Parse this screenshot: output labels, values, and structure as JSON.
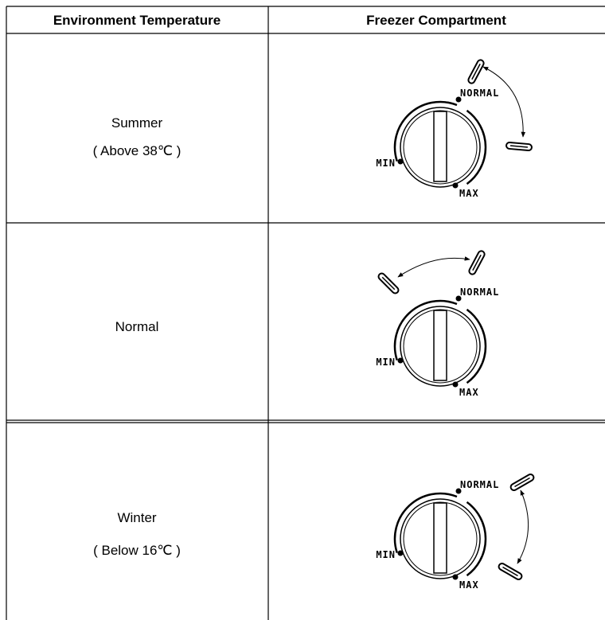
{
  "table": {
    "header": [
      "Environment Temperature",
      "Freezer Compartment"
    ],
    "rows": [
      {
        "label": "Summer",
        "note": "( Above 38℃ )"
      },
      {
        "label": "Normal"
      },
      {
        "label": "Winter",
        "note": "( Below 16℃ )"
      }
    ]
  },
  "dial_labels": {
    "normal": "NORMAL",
    "min": "MIN",
    "max": "MAX"
  }
}
